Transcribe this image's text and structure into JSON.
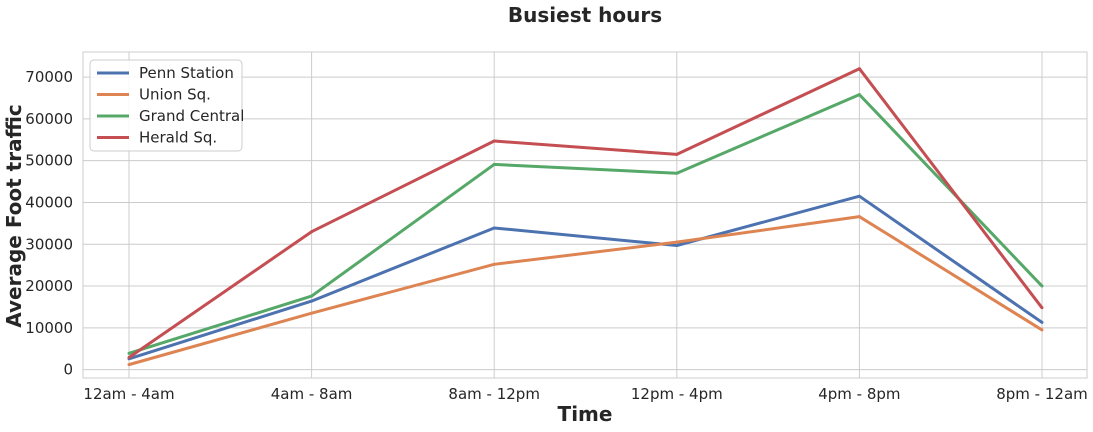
{
  "chart_data": {
    "type": "line",
    "title": "Busiest hours",
    "xlabel": "Time",
    "ylabel": "Average Foot traffic",
    "categories": [
      "12am - 4am",
      "4am - 8am",
      "8am - 12pm",
      "12pm - 4pm",
      "4pm - 8pm",
      "8pm - 12am"
    ],
    "yticks": [
      "0",
      "10000",
      "20000",
      "30000",
      "40000",
      "50000",
      "60000",
      "70000"
    ],
    "ylim": [
      -2000,
      76000
    ],
    "grid": true,
    "legend_position": "top-left",
    "series": [
      {
        "name": "Penn Station",
        "color": "#4c72b0",
        "values": [
          2600,
          16400,
          33900,
          29700,
          41500,
          11300
        ]
      },
      {
        "name": "Union Sq.",
        "color": "#dd8452",
        "values": [
          1200,
          13500,
          25200,
          30500,
          36600,
          9500
        ]
      },
      {
        "name": "Grand Central",
        "color": "#55a868",
        "values": [
          3900,
          17600,
          49100,
          47000,
          65800,
          20000
        ]
      },
      {
        "name": "Herald Sq.",
        "color": "#c44e52",
        "values": [
          2900,
          33000,
          54700,
          51500,
          72000,
          14800
        ]
      }
    ]
  }
}
